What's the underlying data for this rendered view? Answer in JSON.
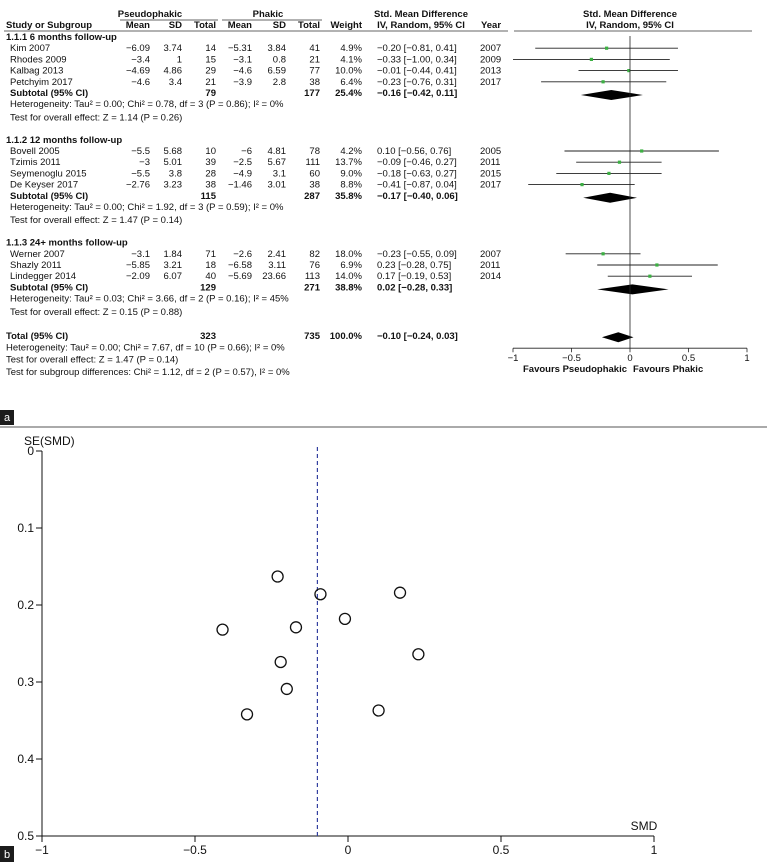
{
  "panel_a": {
    "header": {
      "col_group_1": "Pseudophakic",
      "col_group_2": "Phakic",
      "col_study": "Study or Subgroup",
      "col_mean": "Mean",
      "col_sd": "SD",
      "col_total": "Total",
      "col_weight": "Weight",
      "col_smd_top": "Std. Mean Difference",
      "col_smd_sub": "IV, Random, 95% CI",
      "col_year": "Year",
      "plot_top": "Std. Mean Difference",
      "plot_sub": "IV, Random, 95% CI"
    },
    "subgroups": [
      {
        "title": "1.1.1 6 months follow-up",
        "studies": [
          {
            "name": "Kim 2007",
            "m1": "−6.09",
            "sd1": "3.74",
            "n1": "14",
            "m2": "−5.31",
            "sd2": "3.84",
            "n2": "41",
            "w": "4.9%",
            "ci": "−0.20 [−0.81, 0.41]",
            "year": "2007"
          },
          {
            "name": "Rhodes 2009",
            "m1": "−3.4",
            "sd1": "1",
            "n1": "15",
            "m2": "−3.1",
            "sd2": "0.8",
            "n2": "21",
            "w": "4.1%",
            "ci": "−0.33 [−1.00, 0.34]",
            "year": "2009"
          },
          {
            "name": "Kalbag 2013",
            "m1": "−4.69",
            "sd1": "4.86",
            "n1": "29",
            "m2": "−4.6",
            "sd2": "6.59",
            "n2": "77",
            "w": "10.0%",
            "ci": "−0.01 [−0.44, 0.41]",
            "year": "2013"
          },
          {
            "name": "Petchyim 2017",
            "m1": "−4.6",
            "sd1": "3.4",
            "n1": "21",
            "m2": "−3.9",
            "sd2": "2.8",
            "n2": "38",
            "w": "6.4%",
            "ci": "−0.23 [−0.76, 0.31]",
            "year": "2017"
          }
        ],
        "subtotal": {
          "label": "Subtotal (95% CI)",
          "n1": "79",
          "n2": "177",
          "w": "25.4%",
          "ci": "−0.16 [−0.42, 0.11]"
        },
        "heterogeneity": "Heterogeneity: Tau² = 0.00; Chi² = 0.78, df = 3 (P = 0.86); I² = 0%",
        "overall": "Test for overall effect: Z = 1.14 (P = 0.26)"
      },
      {
        "title": "1.1.2 12 months follow-up",
        "studies": [
          {
            "name": "Bovell 2005",
            "m1": "−5.5",
            "sd1": "5.68",
            "n1": "10",
            "m2": "−6",
            "sd2": "4.81",
            "n2": "78",
            "w": "4.2%",
            "ci": "0.10 [−0.56, 0.76]",
            "year": "2005"
          },
          {
            "name": "Tzimis 2011",
            "m1": "−3",
            "sd1": "5.01",
            "n1": "39",
            "m2": "−2.5",
            "sd2": "5.67",
            "n2": "111",
            "w": "13.7%",
            "ci": "−0.09 [−0.46, 0.27]",
            "year": "2011"
          },
          {
            "name": "Seymenoglu 2015",
            "m1": "−5.5",
            "sd1": "3.8",
            "n1": "28",
            "m2": "−4.9",
            "sd2": "3.1",
            "n2": "60",
            "w": "9.0%",
            "ci": "−0.18 [−0.63, 0.27]",
            "year": "2015"
          },
          {
            "name": "De Keyser 2017",
            "m1": "−2.76",
            "sd1": "3.23",
            "n1": "38",
            "m2": "−1.46",
            "sd2": "3.01",
            "n2": "38",
            "w": "8.8%",
            "ci": "−0.41 [−0.87, 0.04]",
            "year": "2017"
          }
        ],
        "subtotal": {
          "label": "Subtotal (95% CI)",
          "n1": "115",
          "n2": "287",
          "w": "35.8%",
          "ci": "−0.17 [−0.40, 0.06]"
        },
        "heterogeneity": "Heterogeneity: Tau² = 0.00; Chi² = 1.92, df = 3 (P = 0.59); I² = 0%",
        "overall": "Test for overall effect: Z = 1.47 (P = 0.14)"
      },
      {
        "title": "1.1.3 24+ months follow-up",
        "studies": [
          {
            "name": "Werner 2007",
            "m1": "−3.1",
            "sd1": "1.84",
            "n1": "71",
            "m2": "−2.6",
            "sd2": "2.41",
            "n2": "82",
            "w": "18.0%",
            "ci": "−0.23 [−0.55, 0.09]",
            "year": "2007"
          },
          {
            "name": "Shazly 2011",
            "m1": "−5.85",
            "sd1": "3.21",
            "n1": "18",
            "m2": "−6.58",
            "sd2": "3.11",
            "n2": "76",
            "w": "6.9%",
            "ci": "0.23 [−0.28, 0.75]",
            "year": "2011"
          },
          {
            "name": "Lindegger 2014",
            "m1": "−2.09",
            "sd1": "6.07",
            "n1": "40",
            "m2": "−5.69",
            "sd2": "23.66",
            "n2": "113",
            "w": "14.0%",
            "ci": "0.17 [−0.19, 0.53]",
            "year": "2014"
          }
        ],
        "subtotal": {
          "label": "Subtotal (95% CI)",
          "n1": "129",
          "n2": "271",
          "w": "38.8%",
          "ci": "0.02 [−0.28, 0.33]"
        },
        "heterogeneity": "Heterogeneity: Tau² = 0.03; Chi² = 3.66, df = 2 (P = 0.16); I² = 45%",
        "overall": "Test for overall effect: Z = 0.15 (P = 0.88)"
      }
    ],
    "total": {
      "label": "Total (95% CI)",
      "n1": "323",
      "n2": "735",
      "w": "100.0%",
      "ci": "−0.10 [−0.24, 0.03]"
    },
    "total_heterogeneity": "Heterogeneity: Tau² = 0.00; Chi² = 7.67, df = 10 (P = 0.66); I² = 0%",
    "total_overall": "Test for overall effect: Z = 1.47 (P = 0.14)",
    "subgroup_diff": "Test for subgroup differences: Chi² = 1.12, df = 2 (P = 0.57), I² = 0%",
    "axis_ticks": [
      "−1",
      "−0.5",
      "0",
      "0.5",
      "1"
    ],
    "favours_left": "Favours Pseudophakic",
    "favours_right": "Favours Phakic",
    "label": "a"
  },
  "chart_data": [
    {
      "type": "forest",
      "xlim": [
        -1,
        1
      ],
      "studies": [
        {
          "name": "Kim 2007",
          "smd": -0.2,
          "lo": -0.81,
          "hi": 0.41
        },
        {
          "name": "Rhodes 2009",
          "smd": -0.33,
          "lo": -1.0,
          "hi": 0.34
        },
        {
          "name": "Kalbag 2013",
          "smd": -0.01,
          "lo": -0.44,
          "hi": 0.41
        },
        {
          "name": "Petchyim 2017",
          "smd": -0.23,
          "lo": -0.76,
          "hi": 0.31
        },
        {
          "name": "Bovell 2005",
          "smd": 0.1,
          "lo": -0.56,
          "hi": 0.76
        },
        {
          "name": "Tzimis 2011",
          "smd": -0.09,
          "lo": -0.46,
          "hi": 0.27
        },
        {
          "name": "Seymenoglu 2015",
          "smd": -0.18,
          "lo": -0.63,
          "hi": 0.27
        },
        {
          "name": "De Keyser 2017",
          "smd": -0.41,
          "lo": -0.87,
          "hi": 0.04
        },
        {
          "name": "Werner 2007",
          "smd": -0.23,
          "lo": -0.55,
          "hi": 0.09
        },
        {
          "name": "Shazly 2011",
          "smd": 0.23,
          "lo": -0.28,
          "hi": 0.75
        },
        {
          "name": "Lindegger 2014",
          "smd": 0.17,
          "lo": -0.19,
          "hi": 0.53
        }
      ],
      "subtotals": [
        {
          "smd": -0.16,
          "lo": -0.42,
          "hi": 0.11
        },
        {
          "smd": -0.17,
          "lo": -0.4,
          "hi": 0.06
        },
        {
          "smd": 0.02,
          "lo": -0.28,
          "hi": 0.33
        }
      ],
      "total": {
        "smd": -0.1,
        "lo": -0.24,
        "hi": 0.03
      }
    },
    {
      "type": "scatter",
      "title": "",
      "xlabel": "SMD",
      "ylabel": "SE(SMD)",
      "xlim": [
        -1,
        1
      ],
      "ylim": [
        0,
        0.5
      ],
      "y_inverted": true,
      "x_ticks": [
        "−1",
        "−0.5",
        "0",
        "0.5",
        "1"
      ],
      "y_ticks": [
        "0",
        "0.1",
        "0.2",
        "0.3",
        "0.4",
        "0.5"
      ],
      "reference_line_x": -0.1,
      "points": [
        {
          "x": -0.23,
          "y": 0.163
        },
        {
          "x": -0.09,
          "y": 0.186
        },
        {
          "x": 0.17,
          "y": 0.184
        },
        {
          "x": -0.01,
          "y": 0.218
        },
        {
          "x": -0.41,
          "y": 0.232
        },
        {
          "x": -0.17,
          "y": 0.229
        },
        {
          "x": 0.23,
          "y": 0.264
        },
        {
          "x": -0.22,
          "y": 0.274
        },
        {
          "x": -0.2,
          "y": 0.309
        },
        {
          "x": 0.1,
          "y": 0.337
        },
        {
          "x": -0.33,
          "y": 0.342
        }
      ],
      "label": "b"
    }
  ]
}
